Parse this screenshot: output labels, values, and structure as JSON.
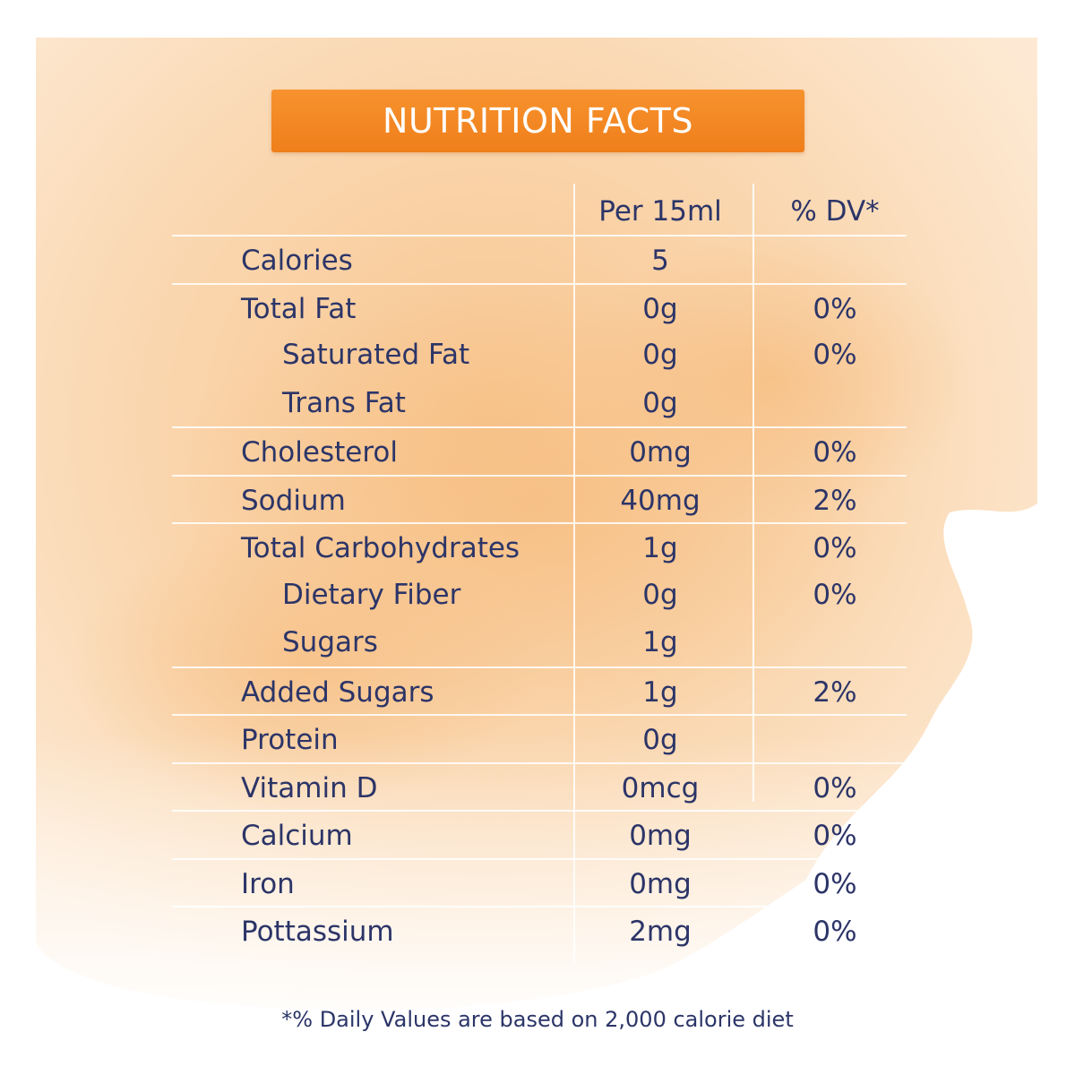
{
  "header": {
    "title": "NUTRITION FACTS"
  },
  "columns": {
    "per": "Per 15ml",
    "dv": "% DV*"
  },
  "rows": [
    {
      "label": "Calories",
      "per": "5",
      "dv": "",
      "indent": false,
      "sep": true
    },
    {
      "label": "Total Fat",
      "per": "0g",
      "dv": "0%",
      "indent": false,
      "sep": true
    },
    {
      "label": "Saturated Fat",
      "per": "0g",
      "dv": "0%",
      "indent": true,
      "sep": false
    },
    {
      "label": "Trans Fat",
      "per": "0g",
      "dv": "",
      "indent": true,
      "sep": false
    },
    {
      "label": "Cholesterol",
      "per": "0mg",
      "dv": "0%",
      "indent": false,
      "sep": true
    },
    {
      "label": "Sodium",
      "per": "40mg",
      "dv": "2%",
      "indent": false,
      "sep": true
    },
    {
      "label": "Total Carbohydrates",
      "per": "1g",
      "dv": "0%",
      "indent": false,
      "sep": true
    },
    {
      "label": "Dietary Fiber",
      "per": "0g",
      "dv": "0%",
      "indent": true,
      "sep": false
    },
    {
      "label": "Sugars",
      "per": "1g",
      "dv": "",
      "indent": true,
      "sep": false
    },
    {
      "label": "Added Sugars",
      "per": "1g",
      "dv": "2%",
      "indent": false,
      "sep": true
    },
    {
      "label": "Protein",
      "per": "0g",
      "dv": "",
      "indent": false,
      "sep": true
    },
    {
      "label": "Vitamin D",
      "per": "0mcg",
      "dv": "0%",
      "indent": false,
      "sep": true
    },
    {
      "label": "Calcium",
      "per": "0mg",
      "dv": "0%",
      "indent": false,
      "sep": true
    },
    {
      "label": "Iron",
      "per": "0mg",
      "dv": "0%",
      "indent": false,
      "sep": true
    },
    {
      "label": "Pottassium",
      "per": "2mg",
      "dv": "0%",
      "indent": false,
      "sep": true
    }
  ],
  "footnote": "*% Daily Values are based on 2,000 calorie diet",
  "colors": {
    "accent": "#f28a24",
    "text": "#2c3568",
    "wash": "#f9d6ad"
  }
}
